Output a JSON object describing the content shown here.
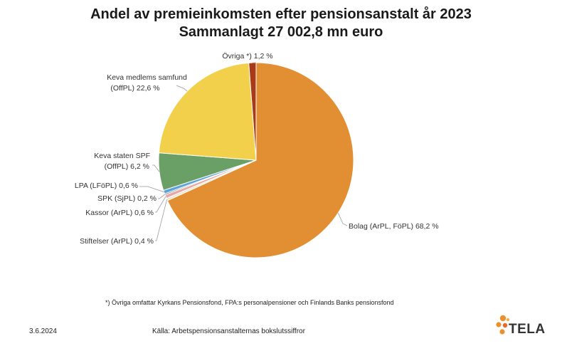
{
  "header": {
    "title": "Andel av premieinkomsten efter pensionsanstalt år 2023",
    "subtitle": "Sammanlagt 27 002,8 mn euro"
  },
  "chart_data": {
    "type": "pie",
    "title": "Andel av premieinkomsten efter pensionsanstalt år 2023",
    "subtitle": "Sammanlagt 27 002,8 mn euro",
    "unit": "%",
    "slices": [
      {
        "name": "Bolag (ArPL, FöPL)",
        "value": 68.2,
        "label": "Bolag (ArPL, FöPL) 68,2 %",
        "color": "#E28F33"
      },
      {
        "name": "Stiftelser (ArPL)",
        "value": 0.4,
        "label": "Stiftelser (ArPL) 0,4 %",
        "color": "#F2E4C8"
      },
      {
        "name": "Kassor (ArPL)",
        "value": 0.6,
        "label": "Kassor (ArPL) 0,6 %",
        "color": "#E7A9A5"
      },
      {
        "name": "SPK (SjPL)",
        "value": 0.2,
        "label": "SPK (SjPL) 0,2 %",
        "color": "#2F5F8A"
      },
      {
        "name": "LPA (LFöPL)",
        "value": 0.6,
        "label": "LPA (LFöPL) 0,6 %",
        "color": "#5DA3D9"
      },
      {
        "name": "Keva staten SPF (OffPL)",
        "value": 6.2,
        "label": "Keva staten SPF (OffPL) 6,2 %",
        "color": "#6A9F66"
      },
      {
        "name": "Keva medlems samfund (OffPL)",
        "value": 22.6,
        "label": "Keva medlems samfund (OffPL) 22,6 %",
        "color": "#F2D04B"
      },
      {
        "name": "Övriga *)",
        "value": 1.2,
        "label": "Övriga *) 1,2 %",
        "color": "#A93A17"
      }
    ],
    "label_lines": {
      "bolag": [
        "Bolag (ArPL, FöPL) 68,2 %"
      ],
      "stiftelser": [
        "Stiftelser (ArPL) 0,4 %"
      ],
      "kassor": [
        "Kassor (ArPL) 0,6 %"
      ],
      "spk": [
        "SPK (SjPL) 0,2 %"
      ],
      "lpa": [
        "LPA (LFöPL) 0,6 %"
      ],
      "keva_staten": [
        "Keva staten SPF",
        "(OffPL) 6,2 %"
      ],
      "keva_medlem": [
        "Keva medlems samfund",
        "(OffPL) 22,6 %"
      ],
      "ovriga": [
        "Övriga *) 1,2 %"
      ]
    },
    "legend": "none",
    "grid": false
  },
  "footer": {
    "footnote": "*) Övriga omfattar Kyrkans Pensionsfond, FPA:s personalpensioner och Finlands Banks pensionsfond",
    "date": "3.6.2024",
    "source": "Källa: Arbetspensionsanstalternas bokslutssiffror",
    "logo_text": "TELA"
  }
}
